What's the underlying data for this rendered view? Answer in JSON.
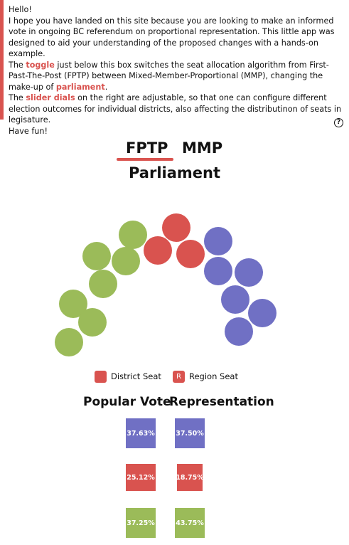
{
  "intro": {
    "hello": "Hello!",
    "line1": "I hope you have landed on this site because you are looking to make an informed vote in ongoing BC referendum on proportional representation. This little app was designed to aid your understanding of the proposed changes with a hands-on example.",
    "toggle_pre": "The ",
    "toggle_word": "toggle",
    "toggle_post": " just below this box switches the seat allocation algorithm from First-Past-The-Post (FPTP) between Mixed-Member-Proportional (MMP), changing the make-up of ",
    "parliament_word": "parliament",
    "period": ".",
    "slider_pre": "The ",
    "slider_word": "slider dials",
    "slider_post": " on the right are adjustable, so that one can configure different election outcomes for individual districts, also affecting the distributinon of seats in legisature.",
    "have_fun": "Have fun!"
  },
  "help": {
    "label": "?"
  },
  "toggle": {
    "fptp": "FPTP",
    "mmp": "MMP",
    "selected": "FPTP"
  },
  "parliament": {
    "title": "Parliament",
    "seat_counts": {
      "green": 7,
      "red": 3,
      "blue": 6
    }
  },
  "legend": {
    "district_label": "District Seat",
    "region_label": "Region Seat",
    "region_marker": "R"
  },
  "stats": {
    "popular_title": "Popular Vote",
    "representation_title": "Representation",
    "rows": [
      {
        "color": "#7070c4",
        "popular": "37.63%",
        "representation": "37.50%"
      },
      {
        "color": "#d9534f",
        "popular": "25.12%",
        "representation": "18.75%"
      },
      {
        "color": "#9bbb59",
        "popular": "37.25%",
        "representation": "43.75%"
      }
    ]
  },
  "colors": {
    "accent": "#d9534f",
    "green": "#9bbb59",
    "red": "#d9534f",
    "blue": "#7070c4"
  }
}
